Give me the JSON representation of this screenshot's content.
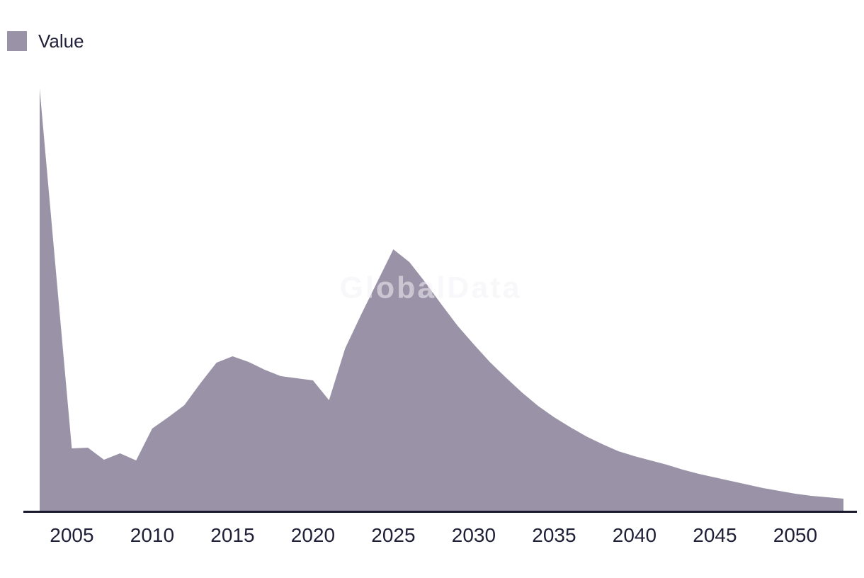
{
  "legend": {
    "label": "Value",
    "swatch_icon": "filled-square"
  },
  "watermark": {
    "text": "GlobalData"
  },
  "colors": {
    "area_fill": "#9A93A8",
    "axis_line": "#191A2E",
    "tick_label": "#1F2038",
    "legend_label": "#1F2038",
    "watermark_text": "rgba(243,243,246,0.55)",
    "background": "#FFFFFF"
  },
  "chart_data": {
    "type": "area",
    "title": "",
    "xlabel": "",
    "ylabel": "",
    "grid": false,
    "legend_position": "top-left",
    "y_axis_visible": false,
    "value_units": "arbitrary units (no y-axis scale shown)",
    "xlim": [
      2003,
      2053
    ],
    "ylim": [
      0,
      620
    ],
    "x_tick_labels": [
      "2005",
      "2010",
      "2015",
      "2020",
      "2025",
      "2030",
      "2035",
      "2040",
      "2045",
      "2050"
    ],
    "series": [
      {
        "name": "Value",
        "x": [
          2003,
          2004,
          2005,
          2006,
          2007,
          2008,
          2009,
          2010,
          2011,
          2012,
          2013,
          2014,
          2015,
          2016,
          2017,
          2018,
          2019,
          2020,
          2021,
          2022,
          2023,
          2024,
          2025,
          2026,
          2027,
          2028,
          2029,
          2030,
          2031,
          2032,
          2033,
          2034,
          2035,
          2036,
          2037,
          2038,
          2039,
          2040,
          2041,
          2042,
          2043,
          2044,
          2045,
          2046,
          2047,
          2048,
          2049,
          2050,
          2051,
          2052,
          2053
        ],
        "values": [
          596,
          341,
          88,
          89,
          72,
          81,
          71,
          116,
          132,
          149,
          180,
          209,
          218,
          210,
          199,
          190,
          187,
          184,
          156,
          229,
          277,
          323,
          369,
          351,
          322,
          291,
          261,
          235,
          210,
          188,
          167,
          148,
          132,
          118,
          105,
          94,
          84,
          77,
          71,
          65,
          58,
          52,
          47,
          42,
          37,
          32,
          28,
          24,
          21,
          19,
          17
        ]
      }
    ]
  }
}
